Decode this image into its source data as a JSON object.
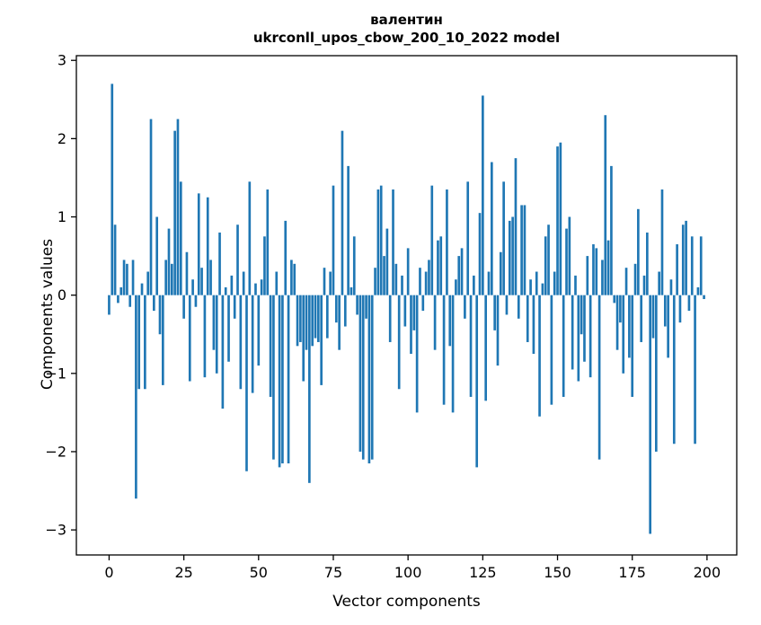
{
  "chart_data": {
    "type": "bar",
    "title": "валентин",
    "subtitle": "ukrconll_upos_cbow_200_10_2022 model",
    "xlabel": "Vector components",
    "ylabel": "Components values",
    "bar_color": "#1f77b4",
    "xlim": [
      -10.95,
      209.95
    ],
    "ylim": [
      -3.32,
      3.06
    ],
    "yticks": [
      -3,
      -2,
      -1,
      0,
      1,
      2,
      3
    ],
    "xticks": [
      0,
      25,
      50,
      75,
      100,
      125,
      150,
      175,
      200
    ],
    "values": [
      -0.25,
      2.7,
      0.9,
      -0.1,
      0.1,
      0.45,
      0.4,
      -0.15,
      0.45,
      -2.6,
      -1.2,
      0.15,
      -1.2,
      0.3,
      2.25,
      -0.2,
      1.0,
      -0.5,
      -1.15,
      0.45,
      0.85,
      0.4,
      2.1,
      2.25,
      1.45,
      -0.3,
      0.55,
      -1.1,
      0.2,
      -0.15,
      1.3,
      0.35,
      -1.05,
      1.25,
      0.45,
      -0.7,
      -1.0,
      0.8,
      -1.45,
      0.1,
      -0.85,
      0.25,
      -0.3,
      0.9,
      -1.2,
      0.3,
      -2.25,
      1.45,
      -1.25,
      0.15,
      -0.9,
      0.2,
      0.75,
      1.35,
      -1.3,
      -2.1,
      0.3,
      -2.2,
      -2.15,
      0.95,
      -2.15,
      0.45,
      0.4,
      -0.65,
      -0.6,
      -1.1,
      -0.7,
      -2.4,
      -0.65,
      -0.55,
      -0.6,
      -1.15,
      0.35,
      -0.55,
      0.3,
      1.4,
      -0.35,
      -0.7,
      2.1,
      -0.4,
      1.65,
      0.1,
      0.75,
      -0.25,
      -2.0,
      -2.1,
      -0.3,
      -2.15,
      -2.1,
      0.35,
      1.35,
      1.4,
      0.5,
      0.85,
      -0.6,
      1.35,
      0.4,
      -1.2,
      0.25,
      -0.4,
      0.6,
      -0.75,
      -0.45,
      -1.5,
      0.35,
      -0.2,
      0.3,
      0.45,
      1.4,
      -0.7,
      0.7,
      0.75,
      -1.4,
      1.35,
      -0.65,
      -1.5,
      0.2,
      0.5,
      0.6,
      -0.3,
      1.45,
      -1.3,
      0.25,
      -2.2,
      1.05,
      2.55,
      -1.35,
      0.3,
      1.7,
      -0.45,
      -0.9,
      0.55,
      1.45,
      -0.25,
      0.95,
      1.0,
      1.75,
      -0.3,
      1.15,
      1.15,
      -0.6,
      0.2,
      -0.75,
      0.3,
      -1.55,
      0.15,
      0.75,
      0.9,
      -1.4,
      0.3,
      1.9,
      1.95,
      -1.3,
      0.85,
      1.0,
      -0.95,
      0.25,
      -1.1,
      -0.5,
      -0.85,
      0.5,
      -1.05,
      0.65,
      0.6,
      -2.1,
      0.45,
      2.3,
      0.7,
      1.65,
      -0.1,
      -0.7,
      -0.35,
      -1.0,
      0.35,
      -0.8,
      -1.3,
      0.4,
      1.1,
      -0.6,
      0.25,
      0.8,
      -3.05,
      -0.55,
      -2.0,
      0.3,
      1.35,
      -0.4,
      -0.8,
      0.2,
      -1.9,
      0.65,
      -0.35,
      0.9,
      0.95,
      -0.2,
      0.75,
      -1.9,
      0.1,
      0.75,
      -0.05
    ]
  }
}
